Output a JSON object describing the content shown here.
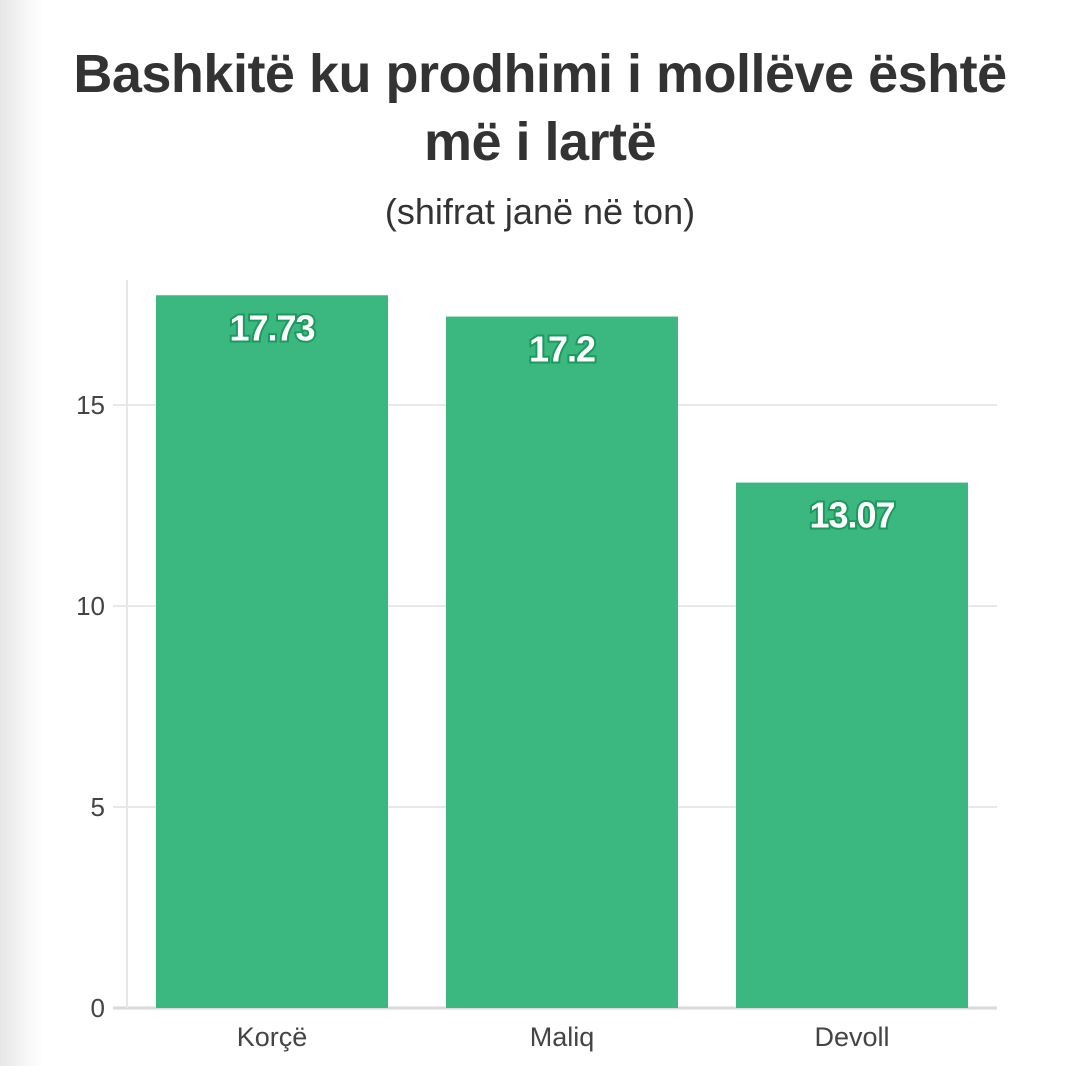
{
  "chart_data": {
    "type": "bar",
    "title": "Bashkitë ku prodhimi i mollëve është më i lartë",
    "subtitle": "(shifrat janë në ton)",
    "xlabel": "",
    "ylabel": "",
    "categories": [
      "Korçë",
      "Maliq",
      "Devoll"
    ],
    "values": [
      17.73,
      17.2,
      13.07
    ],
    "value_labels": [
      "17.73",
      "17.2",
      "13.07"
    ],
    "ylim": [
      0,
      18
    ],
    "yticks": [
      0,
      5,
      10,
      15
    ],
    "grid": "horizontal",
    "bar_color": "#3bb880",
    "label_outline_color": "#1a9a5c"
  }
}
